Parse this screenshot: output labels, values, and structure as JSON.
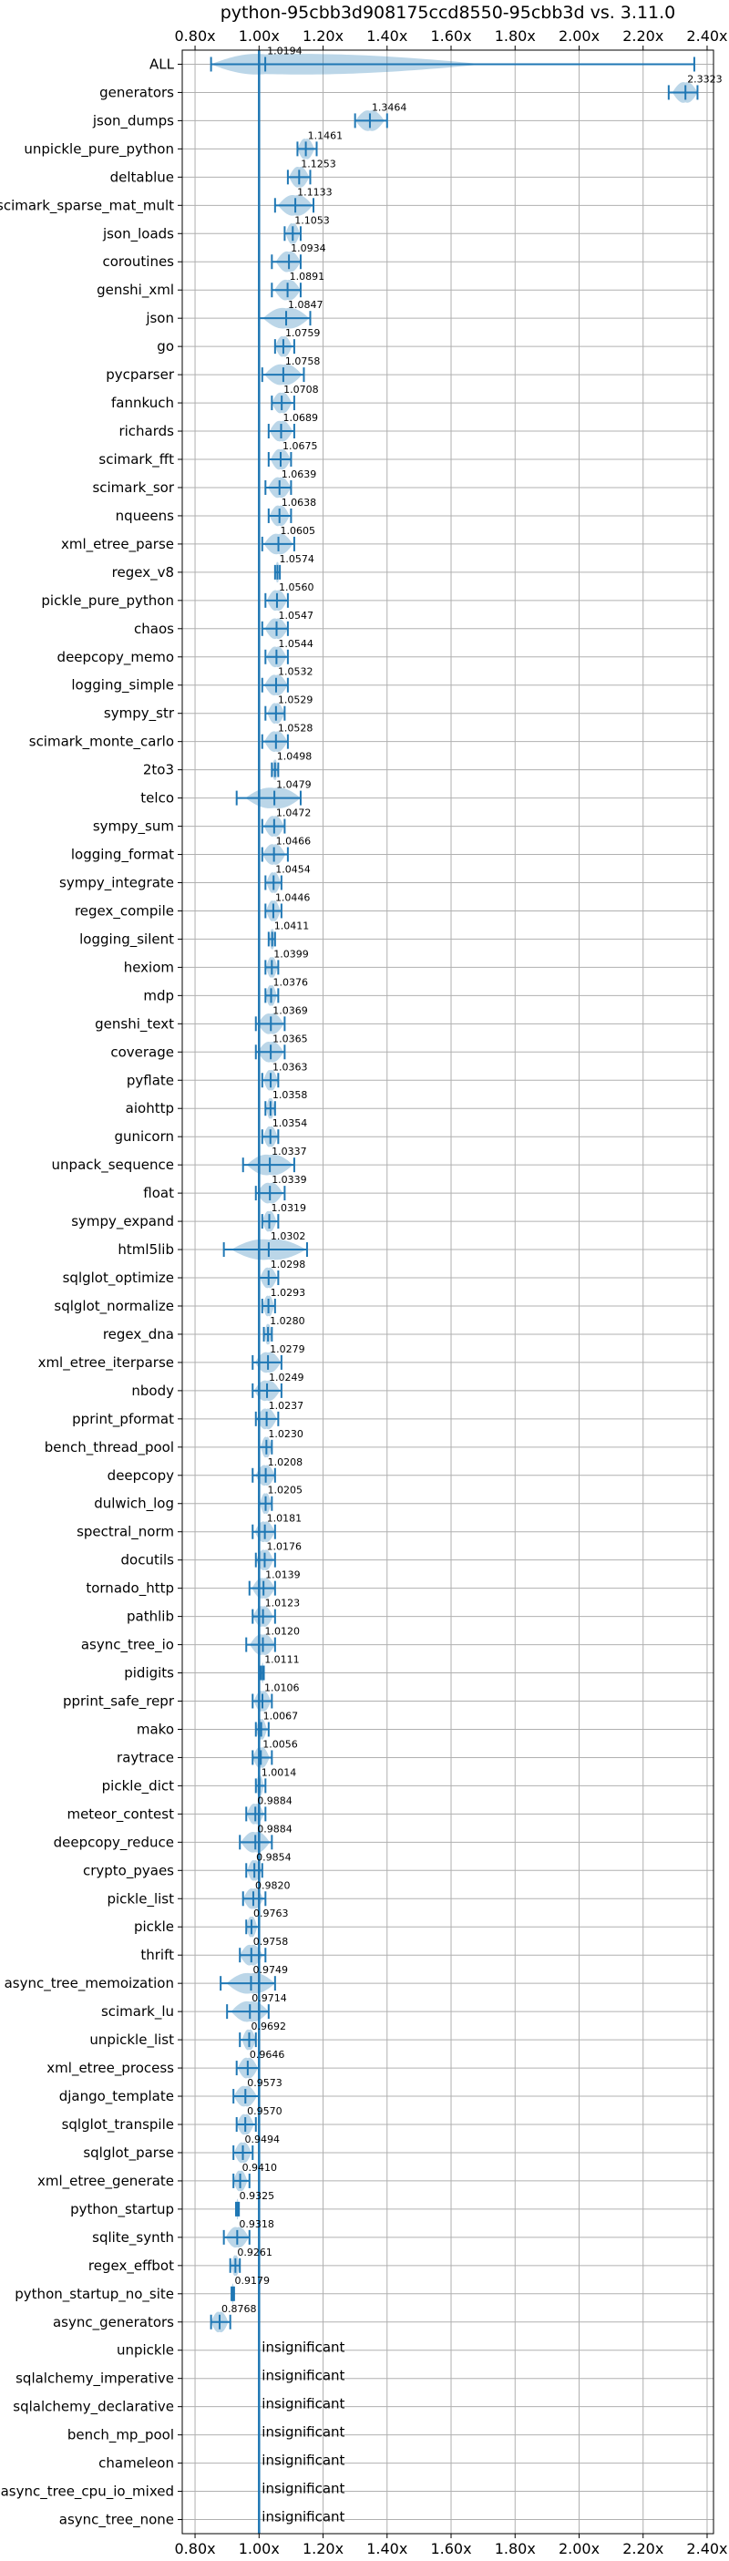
{
  "chart_data": {
    "type": "violin",
    "title": "python-95cbb3d908175ccd8550-95cbb3d vs. 3.11.0",
    "xlabel": "",
    "ylabel": "",
    "xlim": [
      0.76,
      2.42
    ],
    "xticks": [
      0.8,
      1.0,
      1.2,
      1.4,
      1.6,
      1.8,
      2.0,
      2.2,
      2.4
    ],
    "xtick_labels": [
      "0.80x",
      "1.00x",
      "1.20x",
      "1.40x",
      "1.60x",
      "1.80x",
      "2.00x",
      "2.20x",
      "2.40x"
    ],
    "reference_line": 1.0,
    "grid": true,
    "insignificant_label": "insignificant",
    "benchmarks": [
      {
        "name": "ALL",
        "value": 1.0194,
        "label": "1.0194",
        "lo": 0.85,
        "hi": 2.36
      },
      {
        "name": "generators",
        "value": 2.3323,
        "label": "2.3323",
        "lo": 2.28,
        "hi": 2.37
      },
      {
        "name": "json_dumps",
        "value": 1.3464,
        "label": "1.3464",
        "lo": 1.3,
        "hi": 1.4
      },
      {
        "name": "unpickle_pure_python",
        "value": 1.1461,
        "label": "1.1461",
        "lo": 1.12,
        "hi": 1.18
      },
      {
        "name": "deltablue",
        "value": 1.1253,
        "label": "1.1253",
        "lo": 1.09,
        "hi": 1.16
      },
      {
        "name": "scimark_sparse_mat_mult",
        "value": 1.1133,
        "label": "1.1133",
        "lo": 1.05,
        "hi": 1.17
      },
      {
        "name": "json_loads",
        "value": 1.1053,
        "label": "1.1053",
        "lo": 1.08,
        "hi": 1.13
      },
      {
        "name": "coroutines",
        "value": 1.0934,
        "label": "1.0934",
        "lo": 1.04,
        "hi": 1.13
      },
      {
        "name": "genshi_xml",
        "value": 1.0891,
        "label": "1.0891",
        "lo": 1.04,
        "hi": 1.13
      },
      {
        "name": "json",
        "value": 1.0847,
        "label": "1.0847",
        "lo": 1.0,
        "hi": 1.16
      },
      {
        "name": "go",
        "value": 1.0759,
        "label": "1.0759",
        "lo": 1.05,
        "hi": 1.11
      },
      {
        "name": "pycparser",
        "value": 1.0758,
        "label": "1.0758",
        "lo": 1.01,
        "hi": 1.14
      },
      {
        "name": "fannkuch",
        "value": 1.0708,
        "label": "1.0708",
        "lo": 1.04,
        "hi": 1.11
      },
      {
        "name": "richards",
        "value": 1.0689,
        "label": "1.0689",
        "lo": 1.03,
        "hi": 1.11
      },
      {
        "name": "scimark_fft",
        "value": 1.0675,
        "label": "1.0675",
        "lo": 1.03,
        "hi": 1.1
      },
      {
        "name": "scimark_sor",
        "value": 1.0639,
        "label": "1.0639",
        "lo": 1.02,
        "hi": 1.1
      },
      {
        "name": "nqueens",
        "value": 1.0638,
        "label": "1.0638",
        "lo": 1.03,
        "hi": 1.1
      },
      {
        "name": "xml_etree_parse",
        "value": 1.0605,
        "label": "1.0605",
        "lo": 1.01,
        "hi": 1.11
      },
      {
        "name": "regex_v8",
        "value": 1.0574,
        "label": "1.0574",
        "lo": 1.05,
        "hi": 1.065
      },
      {
        "name": "pickle_pure_python",
        "value": 1.056,
        "label": "1.0560",
        "lo": 1.02,
        "hi": 1.09
      },
      {
        "name": "chaos",
        "value": 1.0547,
        "label": "1.0547",
        "lo": 1.01,
        "hi": 1.09
      },
      {
        "name": "deepcopy_memo",
        "value": 1.0544,
        "label": "1.0544",
        "lo": 1.02,
        "hi": 1.09
      },
      {
        "name": "logging_simple",
        "value": 1.0532,
        "label": "1.0532",
        "lo": 1.01,
        "hi": 1.09
      },
      {
        "name": "sympy_str",
        "value": 1.0529,
        "label": "1.0529",
        "lo": 1.02,
        "hi": 1.08
      },
      {
        "name": "scimark_monte_carlo",
        "value": 1.0528,
        "label": "1.0528",
        "lo": 1.01,
        "hi": 1.09
      },
      {
        "name": "2to3",
        "value": 1.0498,
        "label": "1.0498",
        "lo": 1.04,
        "hi": 1.06
      },
      {
        "name": "telco",
        "value": 1.0479,
        "label": "1.0479",
        "lo": 0.93,
        "hi": 1.13
      },
      {
        "name": "sympy_sum",
        "value": 1.0472,
        "label": "1.0472",
        "lo": 1.01,
        "hi": 1.08
      },
      {
        "name": "logging_format",
        "value": 1.0466,
        "label": "1.0466",
        "lo": 1.01,
        "hi": 1.09
      },
      {
        "name": "sympy_integrate",
        "value": 1.0454,
        "label": "1.0454",
        "lo": 1.02,
        "hi": 1.07
      },
      {
        "name": "regex_compile",
        "value": 1.0446,
        "label": "1.0446",
        "lo": 1.02,
        "hi": 1.07
      },
      {
        "name": "logging_silent",
        "value": 1.0411,
        "label": "1.0411",
        "lo": 1.03,
        "hi": 1.05
      },
      {
        "name": "hexiom",
        "value": 1.0399,
        "label": "1.0399",
        "lo": 1.02,
        "hi": 1.06
      },
      {
        "name": "mdp",
        "value": 1.0376,
        "label": "1.0376",
        "lo": 1.02,
        "hi": 1.06
      },
      {
        "name": "genshi_text",
        "value": 1.0369,
        "label": "1.0369",
        "lo": 0.99,
        "hi": 1.08
      },
      {
        "name": "coverage",
        "value": 1.0365,
        "label": "1.0365",
        "lo": 0.99,
        "hi": 1.08
      },
      {
        "name": "pyflate",
        "value": 1.0363,
        "label": "1.0363",
        "lo": 1.01,
        "hi": 1.06
      },
      {
        "name": "aiohttp",
        "value": 1.0358,
        "label": "1.0358",
        "lo": 1.02,
        "hi": 1.05
      },
      {
        "name": "gunicorn",
        "value": 1.0354,
        "label": "1.0354",
        "lo": 1.01,
        "hi": 1.06
      },
      {
        "name": "unpack_sequence",
        "value": 1.0337,
        "label": "1.0337",
        "lo": 0.95,
        "hi": 1.11
      },
      {
        "name": "float",
        "value": 1.0339,
        "label": "1.0339",
        "lo": 0.99,
        "hi": 1.08
      },
      {
        "name": "sympy_expand",
        "value": 1.0319,
        "label": "1.0319",
        "lo": 1.01,
        "hi": 1.06
      },
      {
        "name": "html5lib",
        "value": 1.0302,
        "label": "1.0302",
        "lo": 0.89,
        "hi": 1.15
      },
      {
        "name": "sqlglot_optimize",
        "value": 1.0298,
        "label": "1.0298",
        "lo": 1.0,
        "hi": 1.06
      },
      {
        "name": "sqlglot_normalize",
        "value": 1.0293,
        "label": "1.0293",
        "lo": 1.01,
        "hi": 1.05
      },
      {
        "name": "regex_dna",
        "value": 1.028,
        "label": "1.0280",
        "lo": 1.015,
        "hi": 1.04
      },
      {
        "name": "xml_etree_iterparse",
        "value": 1.0279,
        "label": "1.0279",
        "lo": 0.98,
        "hi": 1.07
      },
      {
        "name": "nbody",
        "value": 1.0249,
        "label": "1.0249",
        "lo": 0.98,
        "hi": 1.07
      },
      {
        "name": "pprint_pformat",
        "value": 1.0237,
        "label": "1.0237",
        "lo": 0.99,
        "hi": 1.06
      },
      {
        "name": "bench_thread_pool",
        "value": 1.023,
        "label": "1.0230",
        "lo": 1.0,
        "hi": 1.04
      },
      {
        "name": "deepcopy",
        "value": 1.0208,
        "label": "1.0208",
        "lo": 0.98,
        "hi": 1.05
      },
      {
        "name": "dulwich_log",
        "value": 1.0205,
        "label": "1.0205",
        "lo": 1.0,
        "hi": 1.04
      },
      {
        "name": "spectral_norm",
        "value": 1.0181,
        "label": "1.0181",
        "lo": 0.98,
        "hi": 1.05
      },
      {
        "name": "docutils",
        "value": 1.0176,
        "label": "1.0176",
        "lo": 0.99,
        "hi": 1.05
      },
      {
        "name": "tornado_http",
        "value": 1.0139,
        "label": "1.0139",
        "lo": 0.97,
        "hi": 1.05
      },
      {
        "name": "pathlib",
        "value": 1.0123,
        "label": "1.0123",
        "lo": 0.98,
        "hi": 1.05
      },
      {
        "name": "async_tree_io",
        "value": 1.012,
        "label": "1.0120",
        "lo": 0.96,
        "hi": 1.05
      },
      {
        "name": "pidigits",
        "value": 1.0111,
        "label": "1.0111",
        "lo": 1.005,
        "hi": 1.015
      },
      {
        "name": "pprint_safe_repr",
        "value": 1.0106,
        "label": "1.0106",
        "lo": 0.98,
        "hi": 1.04
      },
      {
        "name": "mako",
        "value": 1.0067,
        "label": "1.0067",
        "lo": 0.99,
        "hi": 1.03
      },
      {
        "name": "raytrace",
        "value": 1.0056,
        "label": "1.0056",
        "lo": 0.98,
        "hi": 1.04
      },
      {
        "name": "pickle_dict",
        "value": 1.0014,
        "label": "1.0014",
        "lo": 0.99,
        "hi": 1.02
      },
      {
        "name": "meteor_contest",
        "value": 0.9884,
        "label": "0.9884",
        "lo": 0.96,
        "hi": 1.02
      },
      {
        "name": "deepcopy_reduce",
        "value": 0.9884,
        "label": "0.9884",
        "lo": 0.94,
        "hi": 1.04
      },
      {
        "name": "crypto_pyaes",
        "value": 0.9854,
        "label": "0.9854",
        "lo": 0.96,
        "hi": 1.01
      },
      {
        "name": "pickle_list",
        "value": 0.982,
        "label": "0.9820",
        "lo": 0.95,
        "hi": 1.02
      },
      {
        "name": "pickle",
        "value": 0.9763,
        "label": "0.9763",
        "lo": 0.96,
        "hi": 1.0
      },
      {
        "name": "thrift",
        "value": 0.9758,
        "label": "0.9758",
        "lo": 0.94,
        "hi": 1.02
      },
      {
        "name": "async_tree_memoization",
        "value": 0.9749,
        "label": "0.9749",
        "lo": 0.88,
        "hi": 1.05
      },
      {
        "name": "scimark_lu",
        "value": 0.9714,
        "label": "0.9714",
        "lo": 0.9,
        "hi": 1.03
      },
      {
        "name": "unpickle_list",
        "value": 0.9692,
        "label": "0.9692",
        "lo": 0.94,
        "hi": 0.99
      },
      {
        "name": "xml_etree_process",
        "value": 0.9646,
        "label": "0.9646",
        "lo": 0.93,
        "hi": 1.0
      },
      {
        "name": "django_template",
        "value": 0.9573,
        "label": "0.9573",
        "lo": 0.92,
        "hi": 1.0
      },
      {
        "name": "sqlglot_transpile",
        "value": 0.957,
        "label": "0.9570",
        "lo": 0.93,
        "hi": 0.99
      },
      {
        "name": "sqlglot_parse",
        "value": 0.9494,
        "label": "0.9494",
        "lo": 0.92,
        "hi": 0.98
      },
      {
        "name": "xml_etree_generate",
        "value": 0.941,
        "label": "0.9410",
        "lo": 0.92,
        "hi": 0.97
      },
      {
        "name": "python_startup",
        "value": 0.9325,
        "label": "0.9325",
        "lo": 0.928,
        "hi": 0.937
      },
      {
        "name": "sqlite_synth",
        "value": 0.9318,
        "label": "0.9318",
        "lo": 0.89,
        "hi": 0.97
      },
      {
        "name": "regex_effbot",
        "value": 0.9261,
        "label": "0.9261",
        "lo": 0.91,
        "hi": 0.94
      },
      {
        "name": "python_startup_no_site",
        "value": 0.9179,
        "label": "0.9179",
        "lo": 0.914,
        "hi": 0.922
      },
      {
        "name": "async_generators",
        "value": 0.8768,
        "label": "0.8768",
        "lo": 0.85,
        "hi": 0.91
      },
      {
        "name": "unpickle",
        "value": null,
        "label": "insignificant",
        "lo": null,
        "hi": null
      },
      {
        "name": "sqlalchemy_imperative",
        "value": null,
        "label": "insignificant",
        "lo": null,
        "hi": null
      },
      {
        "name": "sqlalchemy_declarative",
        "value": null,
        "label": "insignificant",
        "lo": null,
        "hi": null
      },
      {
        "name": "bench_mp_pool",
        "value": null,
        "label": "insignificant",
        "lo": null,
        "hi": null
      },
      {
        "name": "chameleon",
        "value": null,
        "label": "insignificant",
        "lo": null,
        "hi": null
      },
      {
        "name": "async_tree_cpu_io_mixed",
        "value": null,
        "label": "insignificant",
        "lo": null,
        "hi": null
      },
      {
        "name": "async_tree_none",
        "value": null,
        "label": "insignificant",
        "lo": null,
        "hi": null
      }
    ],
    "colors": {
      "line": "#1f77b4",
      "violin_fill": "#1f77b4",
      "grid": "#b0b0b0",
      "axis": "#000000"
    }
  }
}
